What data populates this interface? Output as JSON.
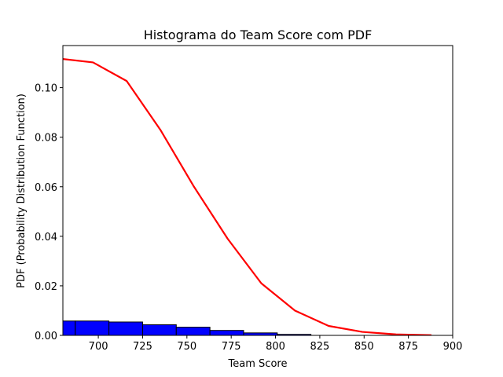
{
  "chart_data": {
    "type": "bar",
    "title": "Histograma do Team Score com PDF",
    "xlabel": "Team Score",
    "ylabel": "PDF (Probability Distribution Function)",
    "xlim": [
      680,
      900
    ],
    "ylim": [
      0,
      0.117
    ],
    "x_ticks": [
      700,
      725,
      750,
      775,
      800,
      825,
      850,
      875,
      900
    ],
    "y_ticks": [
      0.0,
      0.02,
      0.04,
      0.06,
      0.08,
      0.1
    ],
    "x_tick_labels": [
      "700",
      "725",
      "750",
      "775",
      "800",
      "825",
      "850",
      "875",
      "900"
    ],
    "y_tick_labels": [
      "0.00",
      "0.02",
      "0.04",
      "0.06",
      "0.08",
      "0.10"
    ],
    "histogram": {
      "color": "#0000ff",
      "edgecolor": "#000000",
      "bins": [
        {
          "x0": 677,
          "x1": 687,
          "value": 0.0058
        },
        {
          "x0": 687,
          "x1": 706,
          "value": 0.0058
        },
        {
          "x0": 706,
          "x1": 725,
          "value": 0.0054
        },
        {
          "x0": 725,
          "x1": 744,
          "value": 0.0043
        },
        {
          "x0": 744,
          "x1": 763,
          "value": 0.0033
        },
        {
          "x0": 763,
          "x1": 782,
          "value": 0.002
        },
        {
          "x0": 782,
          "x1": 801,
          "value": 0.001
        },
        {
          "x0": 801,
          "x1": 820,
          "value": 0.0004
        }
      ]
    },
    "pdf_line": {
      "color": "#ff0000",
      "x": [
        677,
        697,
        716,
        735,
        754,
        773,
        792,
        811,
        830,
        849,
        868,
        888
      ],
      "y": [
        0.1118,
        0.1102,
        0.1027,
        0.083,
        0.06,
        0.039,
        0.021,
        0.01,
        0.0038,
        0.0014,
        0.0004,
        0.0001
      ]
    }
  }
}
